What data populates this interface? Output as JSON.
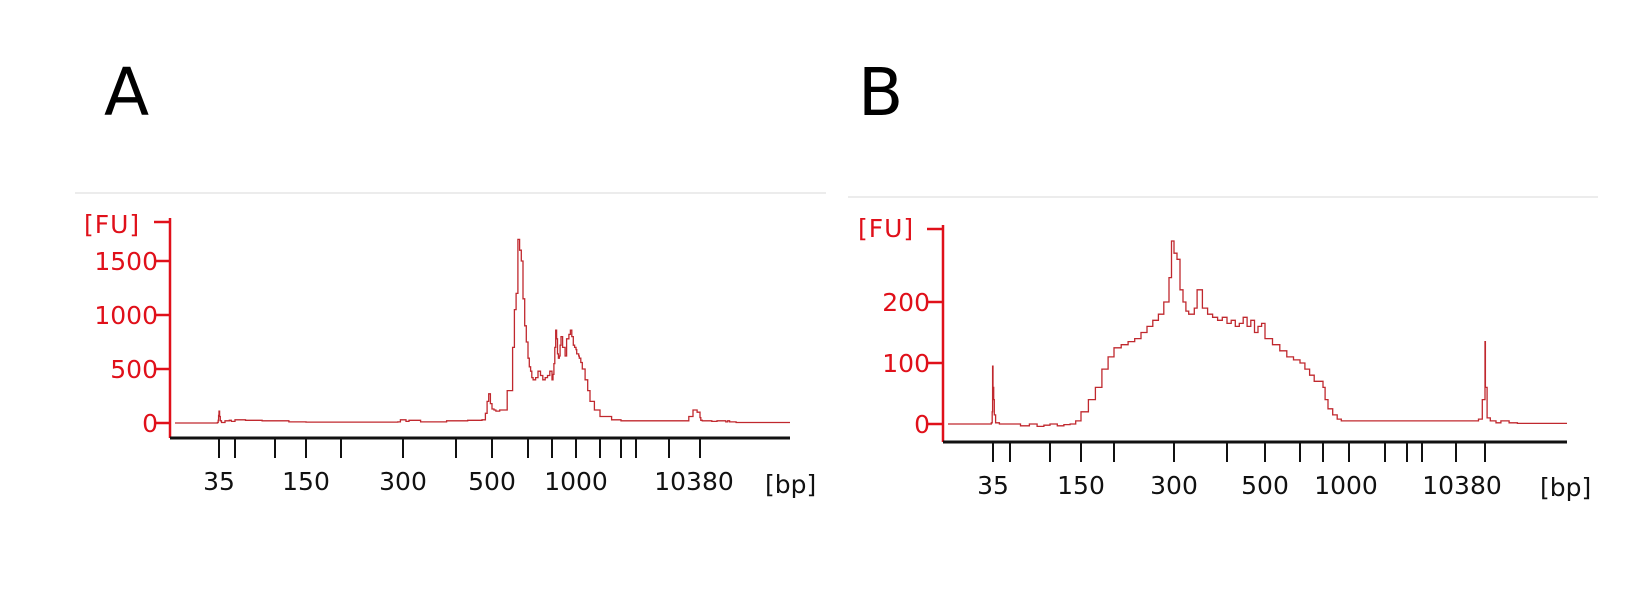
{
  "chart_data": [
    {
      "panel_label": "A",
      "type": "line",
      "y_unit": "[FU]",
      "x_unit": "[bp]",
      "y_ticks": [
        0,
        500,
        1000,
        1500
      ],
      "y_tick_labels": [
        "0",
        "500",
        "1000",
        "1500"
      ],
      "x_tick_labels": [
        "35",
        "150",
        "300",
        "500",
        "1000",
        "10380"
      ],
      "ylim": [
        -100,
        1850
      ],
      "line_color": "#c0282e",
      "axis_color": "#e0101a",
      "series": [
        {
          "x": [
            31,
            33,
            34,
            34.5,
            35,
            35.5,
            36,
            37,
            38,
            40,
            44,
            46,
            50,
            60,
            80,
            120,
            150,
            200,
            250,
            290,
            295,
            300,
            305,
            310,
            330,
            380,
            430,
            470,
            480,
            485,
            490,
            495,
            500,
            505,
            510,
            520,
            540,
            555,
            560,
            565,
            570,
            575,
            580,
            585,
            590,
            595,
            600,
            605,
            610,
            615,
            620,
            630,
            640,
            650,
            660,
            670,
            680,
            690,
            700,
            710,
            720,
            730,
            740,
            750,
            760,
            770,
            780,
            790,
            800,
            820,
            850,
            870,
            900,
            920,
            940,
            960,
            980,
            1000,
            1020,
            1040,
            1060,
            1080,
            1100,
            1150,
            1200,
            1300,
            1400,
            1500,
            1700,
            2000,
            2500,
            3000,
            4000,
            5000,
            7000,
            9000,
            9500,
            10000,
            10380,
            10600,
            11000,
            12000,
            14000,
            16000,
            20000,
            21000,
            22000,
            26000,
            30000
          ],
          "y": [
            0,
            5,
            25,
            70,
            110,
            60,
            20,
            5,
            5,
            20,
            25,
            15,
            30,
            25,
            20,
            10,
            8,
            8,
            8,
            10,
            30,
            30,
            15,
            25,
            10,
            20,
            25,
            30,
            90,
            200,
            270,
            180,
            130,
            120,
            110,
            120,
            300,
            700,
            1050,
            1200,
            1700,
            1600,
            1500,
            1150,
            900,
            750,
            600,
            520,
            480,
            420,
            400,
            420,
            480,
            440,
            400,
            420,
            440,
            480,
            400,
            450,
            550,
            700,
            860,
            780,
            640,
            600,
            620,
            720,
            800,
            700,
            620,
            780,
            820,
            860,
            800,
            720,
            700,
            680,
            640,
            640,
            640,
            620,
            600,
            560,
            500,
            400,
            300,
            200,
            120,
            60,
            30,
            20,
            20,
            20,
            20,
            60,
            120,
            100,
            50,
            25,
            20,
            20,
            15,
            20,
            10,
            20,
            10,
            5,
            5
          ]
        }
      ]
    },
    {
      "panel_label": "B",
      "type": "line",
      "y_unit": "[FU]",
      "x_unit": "[bp]",
      "y_ticks": [
        0,
        100,
        200
      ],
      "y_tick_labels": [
        "0",
        "100",
        "200"
      ],
      "x_tick_labels": [
        "35",
        "150",
        "300",
        "500",
        "1000",
        "10380"
      ],
      "ylim": [
        -18,
        320
      ],
      "line_color": "#c0282e",
      "axis_color": "#e0101a",
      "series": [
        {
          "x": [
            31,
            33,
            34,
            34.5,
            35,
            35.5,
            36,
            37,
            40,
            50,
            60,
            70,
            80,
            90,
            100,
            110,
            120,
            130,
            140,
            150,
            160,
            170,
            180,
            190,
            200,
            210,
            220,
            230,
            240,
            250,
            260,
            270,
            280,
            290,
            295,
            300,
            305,
            310,
            315,
            320,
            325,
            330,
            335,
            340,
            350,
            360,
            370,
            380,
            390,
            400,
            410,
            420,
            430,
            440,
            450,
            460,
            470,
            480,
            490,
            500,
            520,
            540,
            560,
            580,
            600,
            620,
            640,
            660,
            680,
            700,
            720,
            750,
            800,
            850,
            900,
            950,
            1000,
            1100,
            1300,
            1600,
            2000,
            3000,
            4000,
            6000,
            8000,
            9500,
            10000,
            10380,
            10500,
            11000,
            12000,
            14000,
            16000,
            20000,
            25000,
            30000
          ],
          "y": [
            0,
            2,
            20,
            95,
            60,
            40,
            15,
            2,
            0,
            0,
            -3,
            0,
            -4,
            -2,
            0,
            -3,
            -1,
            0,
            5,
            20,
            40,
            60,
            90,
            110,
            125,
            130,
            135,
            140,
            150,
            160,
            170,
            180,
            200,
            240,
            300,
            280,
            270,
            220,
            200,
            185,
            180,
            180,
            190,
            220,
            190,
            180,
            175,
            170,
            175,
            165,
            170,
            160,
            165,
            175,
            160,
            170,
            150,
            160,
            165,
            140,
            130,
            120,
            110,
            105,
            100,
            90,
            80,
            70,
            70,
            60,
            40,
            25,
            15,
            8,
            5,
            5,
            5,
            5,
            5,
            5,
            5,
            5,
            5,
            5,
            5,
            8,
            40,
            135,
            60,
            10,
            5,
            2,
            5,
            2,
            1,
            1
          ]
        }
      ]
    }
  ]
}
